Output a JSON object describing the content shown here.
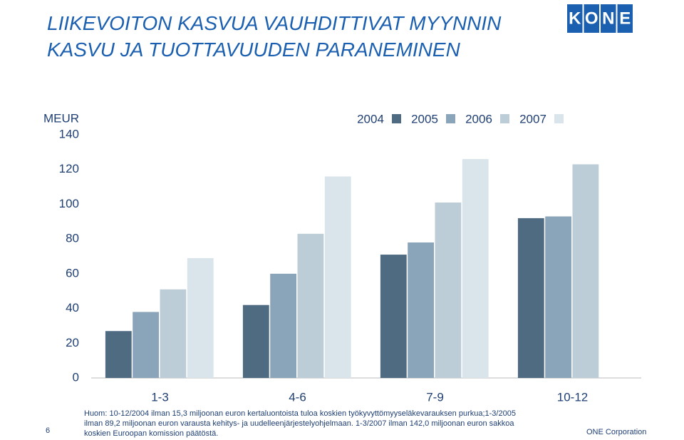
{
  "chart_data": {
    "type": "bar",
    "title": [
      "LIIKEVOITON KASVUA VAUHDITTIVAT MYYNNIN",
      "KASVU JA TUOTTAVUUDEN PARANEMINEN"
    ],
    "y_label": "MEUR",
    "categories": [
      "1-3",
      "4-6",
      "7-9",
      "10-12"
    ],
    "series": [
      {
        "name": "2004",
        "color": "#4f6b82",
        "values": [
          27,
          42,
          71,
          92
        ]
      },
      {
        "name": "2005",
        "color": "#8aa5ba",
        "values": [
          38,
          60,
          78,
          93
        ]
      },
      {
        "name": "2006",
        "color": "#bccdd8",
        "values": [
          51,
          83,
          101,
          123
        ]
      },
      {
        "name": "2007",
        "color": "#d9e4eb",
        "values": [
          69,
          116,
          126,
          null
        ]
      }
    ],
    "ylim": [
      0,
      140
    ],
    "yticks": [
      0,
      20,
      40,
      60,
      80,
      100,
      120,
      140
    ],
    "grid": false,
    "note": [
      "Huom: 10-12/2004 ilman 15,3 miljoonan euron kertaluontoista tuloa koskien työkyvyttömyyseläkevarauksen purkua;1-3/2005",
      "ilman 89,2 miljoonan euron varausta kehitys- ja uudelleenjärjestelyohjelmaan. 1-3/2007 ilman 142,0 miljoonan euron sakkoa",
      "koskien Euroopan komission päätöstä."
    ],
    "page_number": "6",
    "footer": "ONE Corporation",
    "logo": [
      "K",
      "O",
      "N",
      "E"
    ]
  }
}
